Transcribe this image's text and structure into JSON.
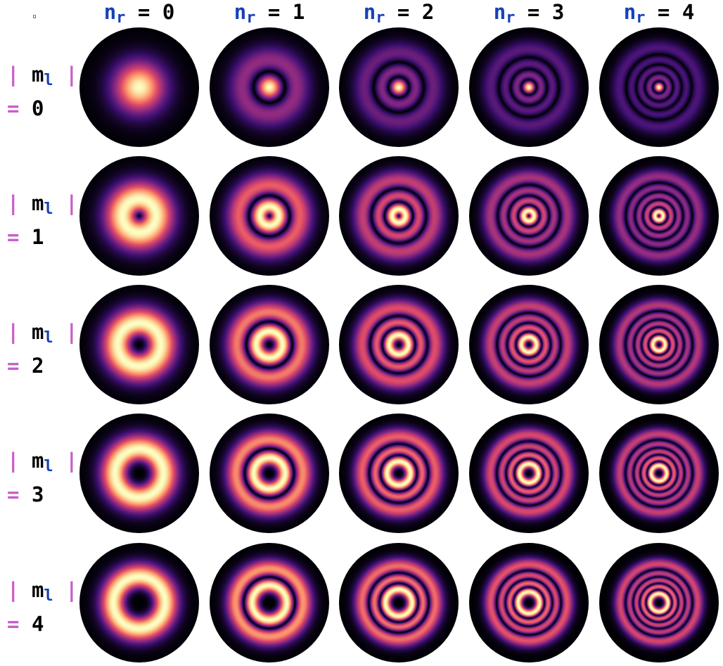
{
  "corner_mark": "▫",
  "column_headers": [
    {
      "symbol": "n",
      "sub": "r",
      "eq": "=",
      "value": "0"
    },
    {
      "symbol": "n",
      "sub": "r",
      "eq": "=",
      "value": "1"
    },
    {
      "symbol": "n",
      "sub": "r",
      "eq": "=",
      "value": "2"
    },
    {
      "symbol": "n",
      "sub": "r",
      "eq": "=",
      "value": "3"
    },
    {
      "symbol": "n",
      "sub": "r",
      "eq": "=",
      "value": "4"
    }
  ],
  "row_headers": [
    {
      "bar_left": "|",
      "symbol": "m",
      "sub": "l",
      "bar_right": "|",
      "eq": "=",
      "value": "0"
    },
    {
      "bar_left": "|",
      "symbol": "m",
      "sub": "l",
      "bar_right": "|",
      "eq": "=",
      "value": "1"
    },
    {
      "bar_left": "|",
      "symbol": "m",
      "sub": "l",
      "bar_right": "|",
      "eq": "=",
      "value": "2"
    },
    {
      "bar_left": "|",
      "symbol": "m",
      "sub": "l",
      "bar_right": "|",
      "eq": "=",
      "value": "3"
    },
    {
      "bar_left": "|",
      "symbol": "m",
      "sub": "l",
      "bar_right": "|",
      "eq": "=",
      "value": "4"
    }
  ],
  "grid": {
    "n_r_values": [
      0,
      1,
      2,
      3,
      4
    ],
    "m_l_values": [
      0,
      1,
      2,
      3,
      4
    ]
  },
  "colors": {
    "background": "#000000",
    "header_blue": "#1740b8",
    "header_magenta": "#c85fc8",
    "colormap": [
      "#000004",
      "#3b0f70",
      "#8c2981",
      "#de4968",
      "#fe9f6d",
      "#fcfdbf"
    ]
  }
}
